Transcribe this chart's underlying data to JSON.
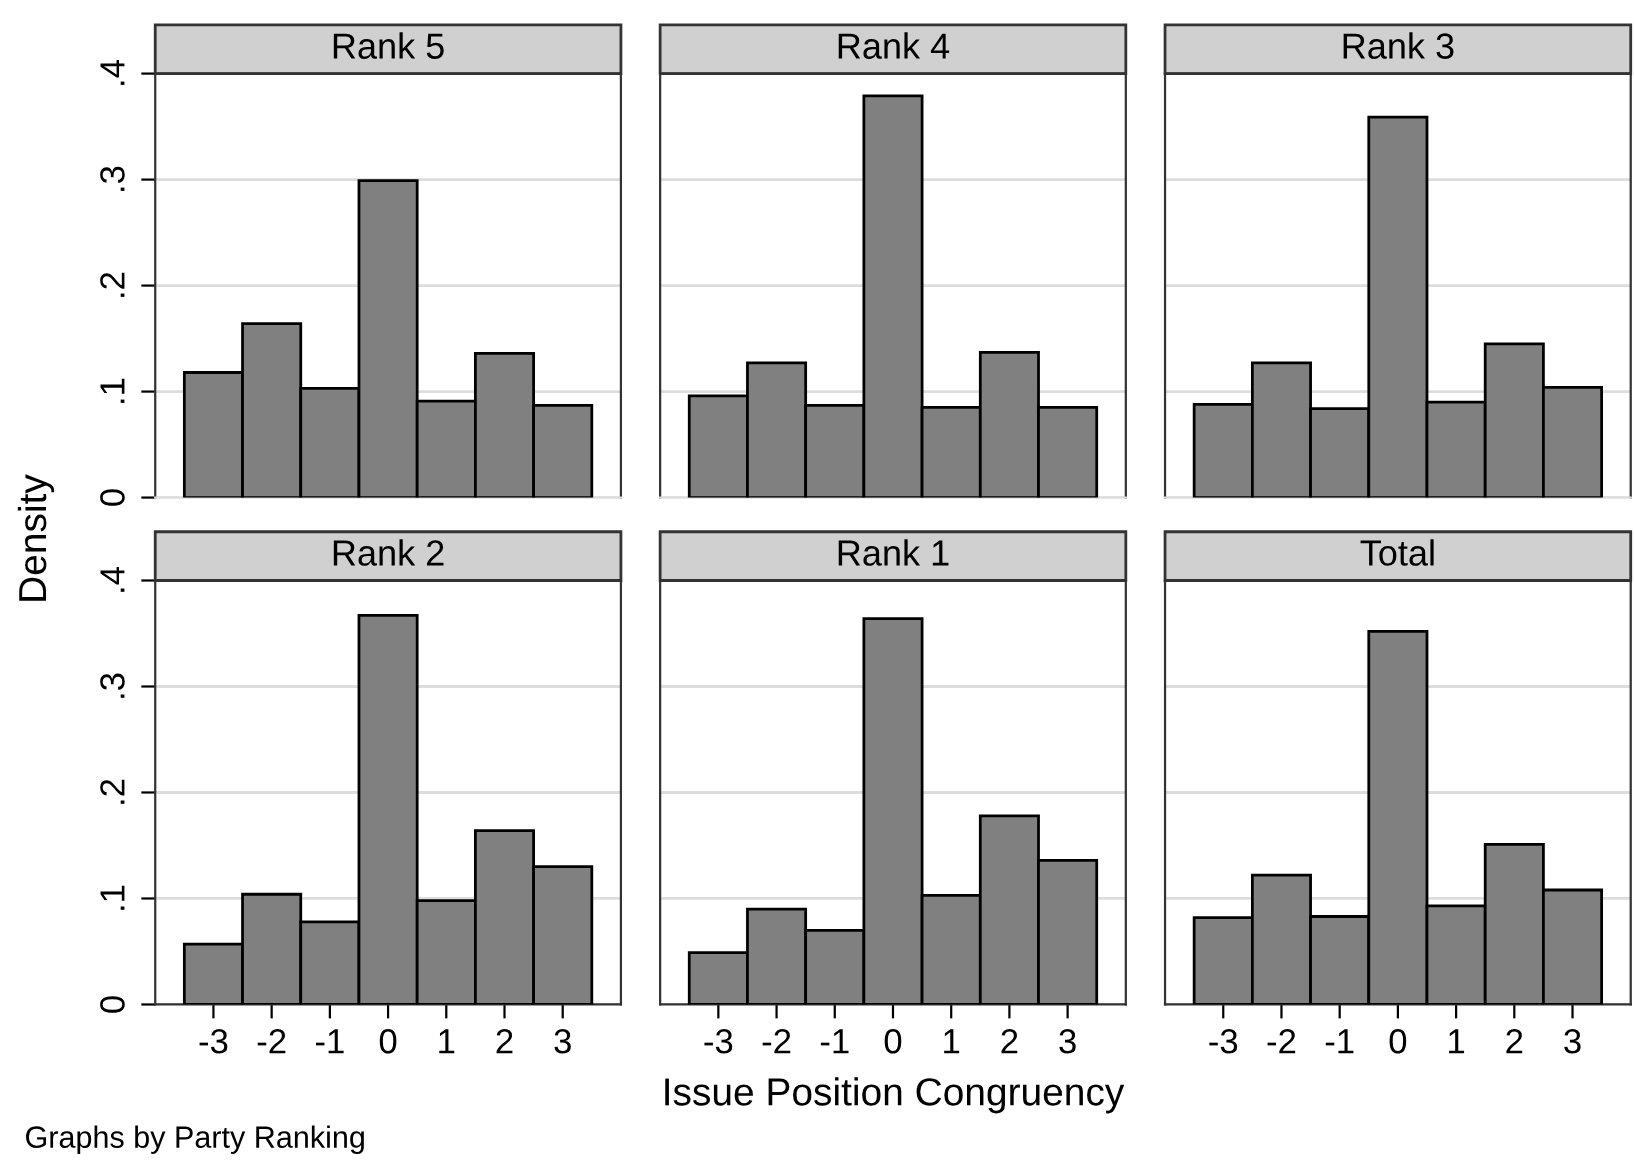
{
  "chart_data": [
    {
      "type": "histogram",
      "title": "Rank 5",
      "ylabel": "Density",
      "bins": [
        -3.5,
        -2.5,
        -1.5,
        -0.5,
        0.5,
        1.5,
        2.5,
        3.5
      ],
      "values": [
        0.118,
        0.164,
        0.103,
        0.299,
        0.091,
        0.136,
        0.087
      ],
      "color": "#808080",
      "xlim": [
        -4,
        4
      ],
      "ylim": [
        0,
        0.4
      ],
      "yticks": [
        0,
        {
          "value": 0.1,
          "label": ".1"
        },
        {
          "value": 0.2,
          "label": ".2"
        },
        {
          "value": 0.3,
          "label": ".3"
        },
        {
          "value": 0.4,
          "label": ".4"
        }
      ],
      "xticks": [
        -3,
        -2,
        -1,
        0,
        1,
        2,
        3
      ],
      "grid": "y",
      "tick_labels": "y"
    },
    {
      "type": "histogram",
      "title": "Rank 4",
      "bins": [
        -3.5,
        -2.5,
        -1.5,
        -0.5,
        0.5,
        1.5,
        2.5,
        3.5
      ],
      "values": [
        0.096,
        0.127,
        0.087,
        0.379,
        0.085,
        0.137,
        0.085
      ],
      "color": "#808080",
      "xlim": [
        -4,
        4
      ],
      "ylim": [
        0,
        0.4
      ],
      "yticks": [
        0,
        0.1,
        0.2,
        0.3,
        0.4
      ],
      "xticks": [
        -3,
        -2,
        -1,
        0,
        1,
        2,
        3
      ],
      "grid": "y",
      "tick_labels": false
    },
    {
      "type": "histogram",
      "title": "Rank 3",
      "bins": [
        -3.5,
        -2.5,
        -1.5,
        -0.5,
        0.5,
        1.5,
        2.5,
        3.5
      ],
      "values": [
        0.088,
        0.127,
        0.084,
        0.359,
        0.09,
        0.145,
        0.104
      ],
      "color": "#808080",
      "xlim": [
        -4,
        4
      ],
      "ylim": [
        0,
        0.4
      ],
      "yticks": [
        0,
        0.1,
        0.2,
        0.3,
        0.4
      ],
      "xticks": [
        -3,
        -2,
        -1,
        0,
        1,
        2,
        3
      ],
      "grid": "y",
      "tick_labels": false
    },
    {
      "type": "histogram",
      "title": "Rank 2",
      "annotations": [
        "Graphs by Party Ranking"
      ],
      "bins": [
        -3.5,
        -2.5,
        -1.5,
        -0.5,
        0.5,
        1.5,
        2.5,
        3.5
      ],
      "values": [
        0.057,
        0.104,
        0.078,
        0.367,
        0.098,
        0.164,
        0.13
      ],
      "color": "#808080",
      "xlim": [
        -4,
        4
      ],
      "ylim": [
        0,
        0.4
      ],
      "yticks": [
        0,
        {
          "value": 0.1,
          "label": ".1"
        },
        {
          "value": 0.2,
          "label": ".2"
        },
        {
          "value": 0.3,
          "label": ".3"
        },
        {
          "value": 0.4,
          "label": ".4"
        }
      ],
      "xticks": [
        -3,
        -2,
        -1,
        0,
        1,
        2,
        3
      ],
      "grid": "y"
    },
    {
      "type": "histogram",
      "title": "Rank 1",
      "xlabel": "Issue Position Congruency",
      "bins": [
        -3.5,
        -2.5,
        -1.5,
        -0.5,
        0.5,
        1.5,
        2.5,
        3.5
      ],
      "values": [
        0.049,
        0.09,
        0.07,
        0.364,
        0.103,
        0.178,
        0.136
      ],
      "color": "#808080",
      "xlim": [
        -4,
        4
      ],
      "ylim": [
        0,
        0.4
      ],
      "yticks": [
        0,
        0.1,
        0.2,
        0.3,
        0.4
      ],
      "xticks": [
        -3,
        -2,
        -1,
        0,
        1,
        2,
        3
      ],
      "grid": "y",
      "tick_labels": "x"
    },
    {
      "type": "histogram",
      "title": "Total",
      "bins": [
        -3.5,
        -2.5,
        -1.5,
        -0.5,
        0.5,
        1.5,
        2.5,
        3.5
      ],
      "values": [
        0.082,
        0.122,
        0.083,
        0.352,
        0.093,
        0.151,
        0.108
      ],
      "color": "#808080",
      "xlim": [
        -4,
        4
      ],
      "ylim": [
        0,
        0.4
      ],
      "yticks": [
        0,
        0.1,
        0.2,
        0.3,
        0.4
      ],
      "xticks": [
        -3,
        -2,
        -1,
        0,
        1,
        2,
        3
      ],
      "grid": "y",
      "tick_labels": "x"
    }
  ]
}
